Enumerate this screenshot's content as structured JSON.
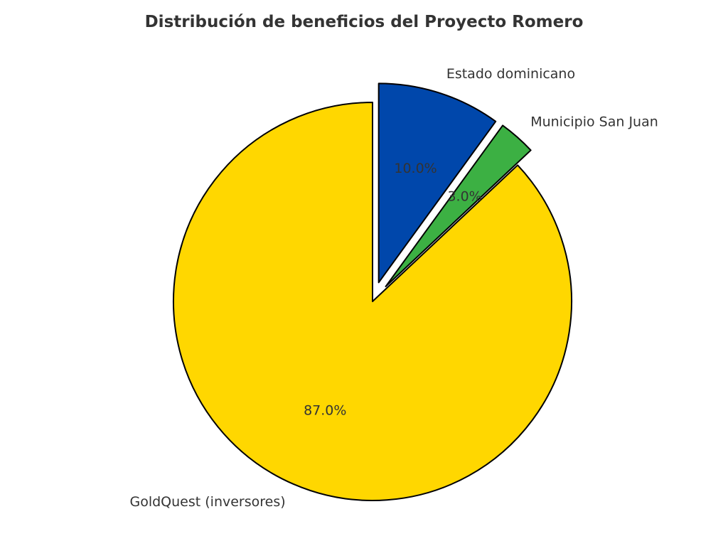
{
  "chart_data": {
    "type": "pie",
    "title": "Distribución de beneficios del Proyecto Romero",
    "start_angle_deg": 90,
    "direction": "counterclockwise",
    "edge_color": "#000000",
    "slices": [
      {
        "label": "GoldQuest (inversores)",
        "value": 87.0,
        "pct_label": "87.0%",
        "color": "#FFD700",
        "exploded": false
      },
      {
        "label": "Municipio San Juan",
        "value": 3.0,
        "pct_label": "3.0%",
        "color": "#3CB043",
        "exploded": true
      },
      {
        "label": "Estado dominicano",
        "value": 10.0,
        "pct_label": "10.0%",
        "color": "#0047AB",
        "exploded": true
      }
    ]
  }
}
